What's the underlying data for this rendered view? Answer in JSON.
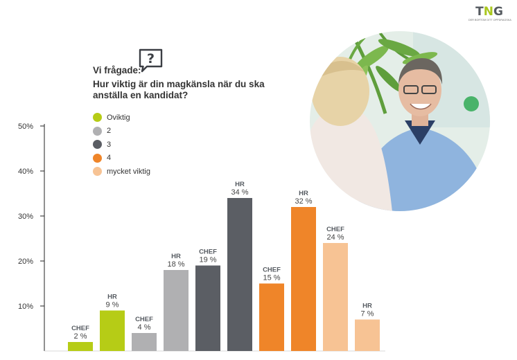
{
  "logo": {
    "mark_t": "T",
    "mark_n": "N",
    "mark_g": "G",
    "tagline": "DER BORTOM DITT OPPDRAGSKA",
    "colors": {
      "gray": "#555a60",
      "green": "#aac81e"
    }
  },
  "question": {
    "icon": "speech-bubble-question-icon",
    "heading": "Vi frågade:",
    "text": "Hur viktig är din magkänsla när du ska anställa en kandidat?"
  },
  "legend": [
    {
      "label": "Oviktig",
      "color": "#b6cc16"
    },
    {
      "label": "2",
      "color": "#b0b0b2"
    },
    {
      "label": "3",
      "color": "#5b5e64"
    },
    {
      "label": "4",
      "color": "#ef8529"
    },
    {
      "label": "mycket viktig",
      "color": "#f7c394"
    }
  ],
  "photo": {
    "description": ""
  },
  "chart_data": {
    "type": "bar",
    "title": "",
    "xlabel": "",
    "ylabel": "",
    "ylim": [
      0,
      50
    ],
    "yticks": [
      "10%",
      "20%",
      "30%",
      "40%",
      "50%"
    ],
    "ytick_values": [
      10,
      20,
      30,
      40,
      50
    ],
    "grid": false,
    "legend_position": "top-left",
    "categories": [
      "Oviktig",
      "2",
      "3",
      "4",
      "mycket viktig"
    ],
    "series": [
      {
        "name": "CHEF",
        "values": [
          2,
          4,
          19,
          15,
          24
        ]
      },
      {
        "name": "HR",
        "values": [
          9,
          18,
          34,
          32,
          7
        ]
      }
    ],
    "bars": [
      {
        "group": "CHEF",
        "value": 2,
        "label": "2 %",
        "color": "#b6cc16"
      },
      {
        "group": "HR",
        "value": 9,
        "label": "9 %",
        "color": "#b6cc16"
      },
      {
        "group": "CHEF",
        "value": 4,
        "label": "4 %",
        "color": "#b0b0b2"
      },
      {
        "group": "HR",
        "value": 18,
        "label": "18 %",
        "color": "#b0b0b2"
      },
      {
        "group": "CHEF",
        "value": 19,
        "label": "19 %",
        "color": "#5b5e64"
      },
      {
        "group": "HR",
        "value": 34,
        "label": "34 %",
        "color": "#5b5e64"
      },
      {
        "group": "CHEF",
        "value": 15,
        "label": "15 %",
        "color": "#ef8529"
      },
      {
        "group": "HR",
        "value": 32,
        "label": "32 %",
        "color": "#ef8529"
      },
      {
        "group": "CHEF",
        "value": 24,
        "label": "24 %",
        "color": "#f7c394"
      },
      {
        "group": "HR",
        "value": 7,
        "label": "7 %",
        "color": "#f7c394"
      }
    ]
  }
}
